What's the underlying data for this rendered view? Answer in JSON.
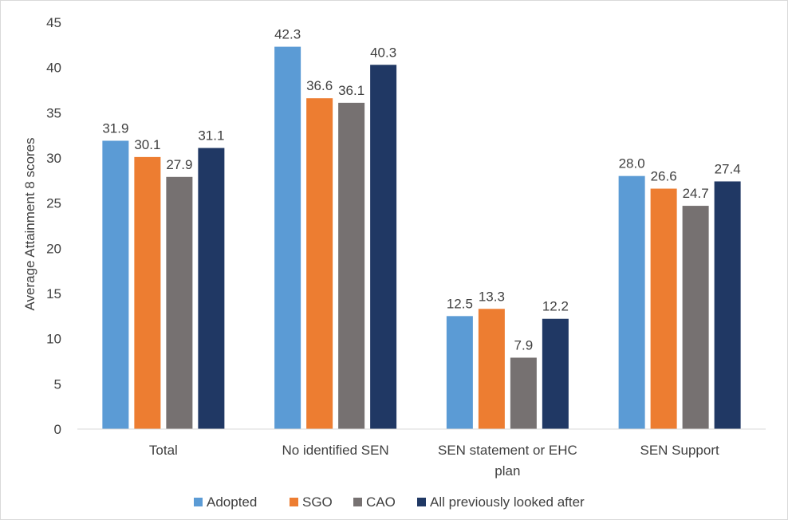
{
  "chart_data": {
    "type": "bar",
    "title": "",
    "xlabel": "",
    "ylabel": "Average Attainment 8 scores",
    "ylim": [
      0,
      45
    ],
    "yticks": [
      0,
      5,
      10,
      15,
      20,
      25,
      30,
      35,
      40,
      45
    ],
    "grid": false,
    "legend_position": "bottom",
    "categories": [
      [
        "Total"
      ],
      [
        "No identified SEN"
      ],
      [
        "SEN statement or EHC",
        "plan"
      ],
      [
        "SEN Support"
      ]
    ],
    "series": [
      {
        "name": "Adopted",
        "color": "#5b9bd5",
        "values": [
          31.9,
          42.3,
          12.5,
          28.0
        ]
      },
      {
        "name": "SGO",
        "color": "#ed7d31",
        "values": [
          30.1,
          36.6,
          13.3,
          26.6
        ]
      },
      {
        "name": "CAO",
        "color": "#767171",
        "values": [
          27.9,
          36.1,
          7.9,
          24.7
        ]
      },
      {
        "name": "All previously looked after",
        "color": "#203864",
        "values": [
          31.1,
          40.3,
          12.2,
          27.4
        ]
      }
    ]
  }
}
